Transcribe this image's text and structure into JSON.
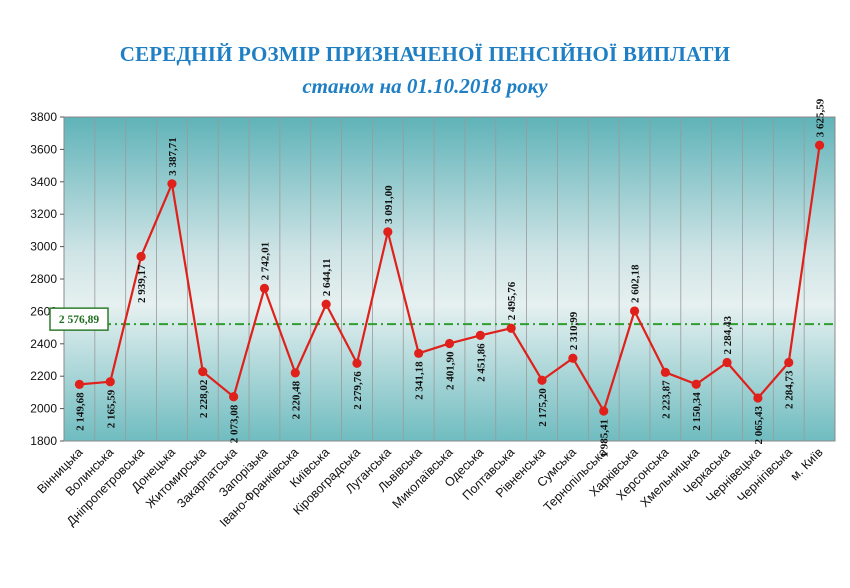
{
  "header": {
    "title": "СЕРЕДНІЙ РОЗМІР ПРИЗНАЧЕНОЇ ПЕНСІЙНОЇ ВИПЛАТИ",
    "subtitle": "станом на 01.10.2018 року"
  },
  "chart_data": {
    "type": "line",
    "title": "СЕРЕДНІЙ РОЗМІР ПРИЗНАЧЕНОЇ ПЕНСІЙНОЇ ВИПЛАТИ",
    "subtitle": "станом на 01.10.2018 року",
    "xlabel": "",
    "ylabel": "",
    "ylim": [
      1800,
      3800
    ],
    "yticks": [
      1800,
      2000,
      2200,
      2400,
      2600,
      2800,
      3000,
      3200,
      3400,
      3600,
      3800
    ],
    "grid": "vertical",
    "categories": [
      "Вінницька",
      "Волинська",
      "Дніпропетровська",
      "Донецька",
      "Житомирська",
      "Закарпатська",
      "Запорізька",
      "Івано-Франківська",
      "Київська",
      "Кіровоградська",
      "Луганська",
      "Львівська",
      "Миколаївська",
      "Одеська",
      "Полтавська",
      "Рівненська",
      "Сумська",
      "Тернопільська",
      "Харківська",
      "Херсонська",
      "Хмельницька",
      "Черкаська",
      "Чернівецька",
      "Чернігівська",
      "м. Київ"
    ],
    "values": [
      2149.68,
      2165.59,
      2939.17,
      3387.71,
      2228.02,
      2073.08,
      2742.01,
      2220.48,
      2644.11,
      2279.76,
      3091.0,
      2341.18,
      2401.9,
      2451.86,
      2495.76,
      2175.2,
      2310.99,
      1985.41,
      2602.18,
      2223.87,
      2150.34,
      2284.43,
      2065.43,
      2284.73,
      3625.59
    ],
    "value_labels": [
      "2 149,68",
      "2 165,59",
      "2 939,17",
      "3 387,71",
      "2 228,02",
      "2 073,08",
      "2 742,01",
      "2 220,48",
      "2 644,11",
      "2 279,76",
      "3 091,00",
      "2 341,18",
      "2 401,90",
      "2 451,86",
      "2 495,76",
      "2 175,20",
      "2 310,99",
      "1 985,41",
      "2 602,18",
      "2 223,87",
      "2 150,34",
      "2 284,43",
      "2 065,43",
      "2 284,73",
      "3 625,59"
    ],
    "reference_line": {
      "label": "2 576,89",
      "value": 2576.89,
      "color": "#2f9e2f"
    },
    "line_color": "#e0201a",
    "marker_color": "#e0201a"
  }
}
